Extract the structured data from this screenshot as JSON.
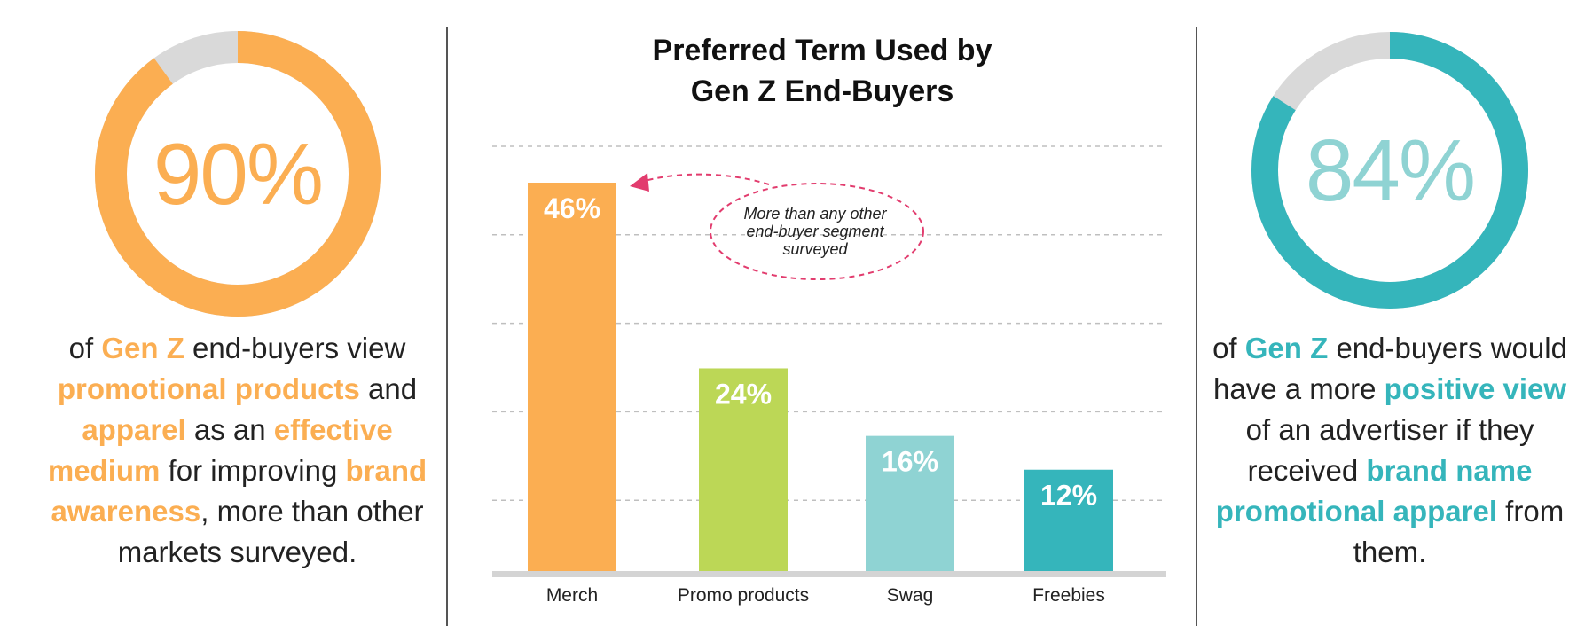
{
  "left_stat": {
    "value": "90%",
    "fraction": 0.9,
    "color": "#FBAE52",
    "track_color": "#D9D9D9",
    "text": [
      {
        "t": "of ",
        "h": false
      },
      {
        "t": "Gen Z",
        "h": true
      },
      {
        "t": " end-buyers view ",
        "h": false
      },
      {
        "t": "promotional products",
        "h": true
      },
      {
        "t": " and ",
        "h": false
      },
      {
        "t": "apparel",
        "h": true
      },
      {
        "t": " as an ",
        "h": false
      },
      {
        "t": "effective medium",
        "h": true
      },
      {
        "t": " for improving ",
        "h": false
      },
      {
        "t": "brand awareness",
        "h": true
      },
      {
        "t": ", more than other markets surveyed.",
        "h": false
      }
    ]
  },
  "right_stat": {
    "value": "84%",
    "fraction": 0.84,
    "color": "#35B5BB",
    "value_color": "#8FD3D3",
    "track_color": "#D9D9D9",
    "text": [
      {
        "t": "of ",
        "h": false
      },
      {
        "t": "Gen Z",
        "h": true
      },
      {
        "t": " end-buyers would have a more ",
        "h": false
      },
      {
        "t": "positive view",
        "h": true
      },
      {
        "t": " of an advertiser if they received ",
        "h": false
      },
      {
        "t": "brand name promotional apparel",
        "h": true
      },
      {
        "t": " from them.",
        "h": false
      }
    ]
  },
  "chart_data": {
    "type": "bar",
    "title_line1": "Preferred Term Used by",
    "title_line2": "Gen Z End-Buyers",
    "categories": [
      "Merch",
      "Promo products",
      "Swag",
      "Freebies"
    ],
    "values": [
      46,
      24,
      16,
      12
    ],
    "value_labels": [
      "46%",
      "24%",
      "16%",
      "12%"
    ],
    "colors": [
      "#FBAE52",
      "#BCD756",
      "#8FD3D3",
      "#35B5BB"
    ],
    "ylim": [
      0,
      50
    ],
    "grid": true,
    "xlabel": "",
    "ylabel": "",
    "annotation": {
      "text": [
        "More than any other",
        "end-buyer segment",
        "surveyed"
      ],
      "target": "Merch",
      "color": "#E23C6E"
    }
  }
}
